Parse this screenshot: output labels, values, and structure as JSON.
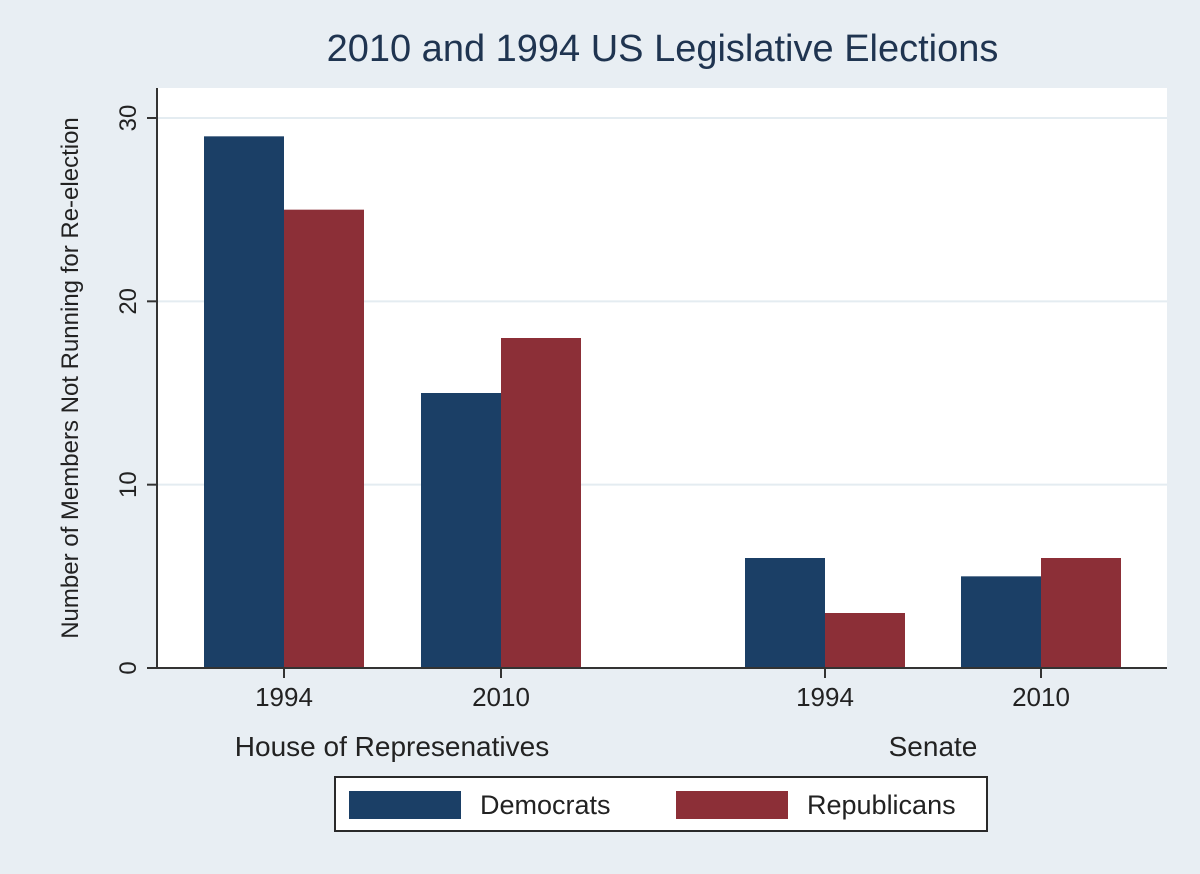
{
  "chart_data": {
    "type": "bar",
    "title": "2010 and 1994 US Legislative Elections",
    "ylabel": "Number of Members Not Running for Re-election",
    "ylim": [
      0,
      30
    ],
    "yticks": [
      "0",
      "10",
      "20",
      "30"
    ],
    "grid": true,
    "legend_position": "bottom",
    "groups": [
      {
        "label": "House of Represenatives",
        "categories": [
          "1994",
          "2010"
        ]
      },
      {
        "label": "Senate",
        "categories": [
          "1994",
          "2010"
        ]
      }
    ],
    "series": [
      {
        "name": "Democrats",
        "color": "#1b3f66",
        "values": [
          29,
          15,
          6,
          5
        ]
      },
      {
        "name": "Republicans",
        "color": "#8c2f37",
        "values": [
          25,
          18,
          3,
          6
        ]
      }
    ]
  }
}
